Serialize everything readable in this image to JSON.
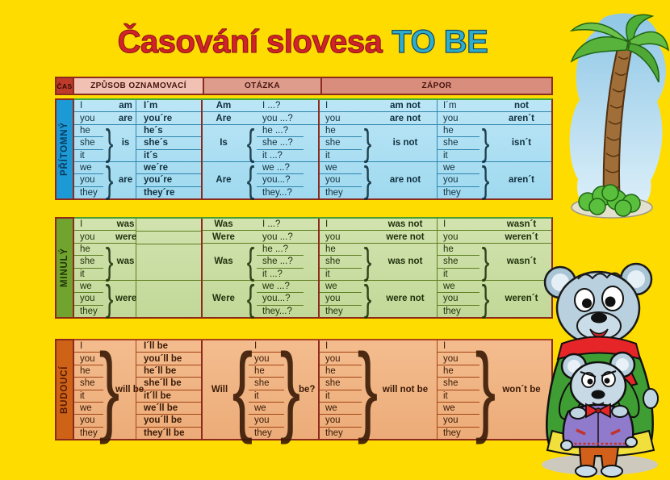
{
  "title": {
    "main": "Časování slovesa",
    "accent": "TO BE"
  },
  "header": {
    "time_label": "ČAS",
    "columns": [
      "ZPŮSOB OZNAMOVACÍ",
      "OTÁZKA",
      "ZÁPOR"
    ]
  },
  "colors": {
    "background": "#FFDC00",
    "title_red": "#D3232A",
    "title_cyan": "#2FAECB",
    "table_border": "#8C2A1C",
    "header_time_bg": "#BE3B2B",
    "header_col_bgs": [
      "#F1C2B4",
      "#DD9C8C",
      "#D98E7D"
    ]
  },
  "themes": {
    "present": {
      "label_bg": "#1C9AD6",
      "label_text": "#0A3B60",
      "table_bg": "#BCE6F6",
      "table_bg2": "#9FD9EF",
      "grid": "#2E86AE",
      "text": "#10303F",
      "top": "#3CA93C"
    },
    "past": {
      "label_bg": "#70A42E",
      "label_text": "#20330A",
      "table_bg": "#D2E3AF",
      "table_bg2": "#C2D898",
      "grid": "#5D7D20",
      "text": "#20330C",
      "top": "#4E9B2E"
    },
    "future": {
      "label_bg": "#CE6318",
      "label_text": "#541A04",
      "table_bg": "#F4BC8E",
      "table_bg2": "#ECAC79",
      "grid": "#A34413",
      "text": "#3A1A06",
      "top": "#A8451A"
    }
  },
  "sections": [
    {
      "id": "present",
      "label": "PŘÍTOMNÝ",
      "statement": [
        {
          "p": [
            "I"
          ],
          "v": "am"
        },
        {
          "p": [
            "you"
          ],
          "v": "are"
        },
        {
          "p": [
            "he",
            "she",
            "it"
          ],
          "v": "is"
        },
        {
          "p": [
            "we",
            "you",
            "they"
          ],
          "v": "are"
        }
      ],
      "contractions": [
        [
          "I´m"
        ],
        [
          "you´re"
        ],
        [
          "he´s",
          "she´s",
          "it´s"
        ],
        [
          "we´re",
          "you´re",
          "they´re"
        ]
      ],
      "question": [
        {
          "v": "Am",
          "p": [
            "I ...?"
          ]
        },
        {
          "v": "Are",
          "p": [
            "you ...?"
          ]
        },
        {
          "v": "Is",
          "p": [
            "he ...?",
            "she ...?",
            "it ...?"
          ]
        },
        {
          "v": "Are",
          "p": [
            "we ...?",
            "you...?",
            "they...?"
          ]
        }
      ],
      "negative_full": [
        {
          "p": [
            "I"
          ],
          "v": "am not"
        },
        {
          "p": [
            "you"
          ],
          "v": "are not"
        },
        {
          "p": [
            "he",
            "she",
            "it"
          ],
          "v": "is not"
        },
        {
          "p": [
            "we",
            "you",
            "they"
          ],
          "v": "are not"
        }
      ],
      "negative_short": [
        {
          "p": [
            "I´m"
          ],
          "v": "not"
        },
        {
          "p": [
            "you"
          ],
          "v": "aren´t"
        },
        {
          "p": [
            "he",
            "she",
            "it"
          ],
          "v": "isn´t"
        },
        {
          "p": [
            "we",
            "you",
            "they"
          ],
          "v": "aren´t"
        }
      ]
    },
    {
      "id": "past",
      "label": "MINULÝ",
      "statement": [
        {
          "p": [
            "I"
          ],
          "v": "was"
        },
        {
          "p": [
            "you"
          ],
          "v": "were"
        },
        {
          "p": [
            "he",
            "she",
            "it"
          ],
          "v": "was"
        },
        {
          "p": [
            "we",
            "you",
            "they"
          ],
          "v": "were"
        }
      ],
      "contractions": [
        [],
        [],
        [],
        []
      ],
      "question": [
        {
          "v": "Was",
          "p": [
            "I ...?"
          ]
        },
        {
          "v": "Were",
          "p": [
            "you ...?"
          ]
        },
        {
          "v": "Was",
          "p": [
            "he ...?",
            "she ...?",
            "it ...?"
          ]
        },
        {
          "v": "Were",
          "p": [
            "we ...?",
            "you...?",
            "they...?"
          ]
        }
      ],
      "negative_full": [
        {
          "p": [
            "I"
          ],
          "v": "was not"
        },
        {
          "p": [
            "you"
          ],
          "v": "were not"
        },
        {
          "p": [
            "he",
            "she",
            "it"
          ],
          "v": "was not"
        },
        {
          "p": [
            "we",
            "you",
            "they"
          ],
          "v": "were not"
        }
      ],
      "negative_short": [
        {
          "p": [
            "I"
          ],
          "v": "wasn´t"
        },
        {
          "p": [
            "you"
          ],
          "v": "weren´t"
        },
        {
          "p": [
            "he",
            "she",
            "it"
          ],
          "v": "wasn´t"
        },
        {
          "p": [
            "we",
            "you",
            "they"
          ],
          "v": "weren´t"
        }
      ]
    },
    {
      "id": "future",
      "label": "BUDOUCÍ",
      "statement": [
        {
          "p": [
            "I",
            "you",
            "he",
            "she",
            "it",
            "we",
            "you",
            "they"
          ],
          "v": "will be"
        }
      ],
      "contractions": [
        [
          "I´ll be",
          "you´ll be",
          "he´ll be",
          "she´ll be",
          "it´ll be",
          "we´ll be",
          "you´ll be",
          "they´ll be"
        ]
      ],
      "question": [
        {
          "v": "Will",
          "p": [
            "I",
            "you",
            "he",
            "she",
            "it",
            "we",
            "you",
            "they"
          ],
          "suffix": "be?"
        }
      ],
      "negative_full": [
        {
          "p": [
            "I",
            "you",
            "he",
            "she",
            "it",
            "we",
            "you",
            "they"
          ],
          "v": "will not be"
        }
      ],
      "negative_short": [
        {
          "p": [
            "I",
            "you",
            "he",
            "she",
            "it",
            "we",
            "you",
            "they"
          ],
          "v": "won´t be"
        }
      ]
    }
  ],
  "illustrations": {
    "top_right": "palm-tree",
    "bottom_right": "two-mice-characters"
  }
}
